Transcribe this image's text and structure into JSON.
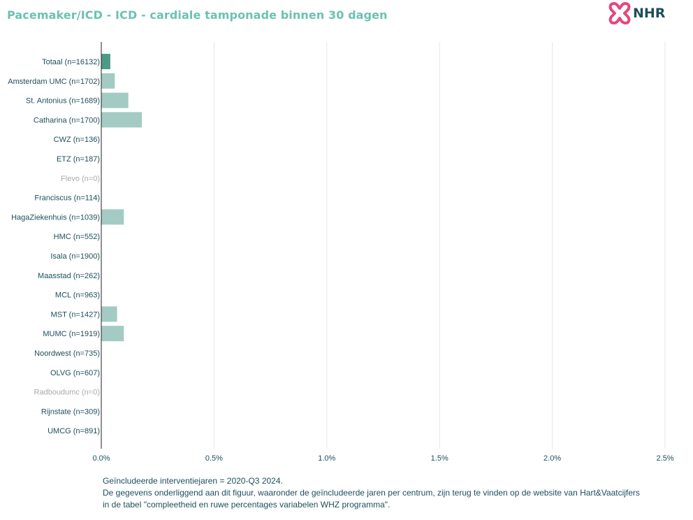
{
  "title": "Pacemaker/ICD - ICD - cardiale tamponade binnen 30 dagen",
  "logo": {
    "text": "NHR",
    "icon": "heart-cross-logo-icon"
  },
  "colors": {
    "title": "#6cc1b3",
    "bar_total": "#4e9a86",
    "bar_center": "#a3cbc4",
    "label": "#1d4f5b",
    "label_muted": "#a9a9a9",
    "grid": "#e6e6e6",
    "logo_pink": "#e8457a"
  },
  "chart_data": {
    "type": "bar",
    "orientation": "horizontal",
    "categories": [
      "Totaal (n=16132)",
      "Amsterdam UMC (n=1702)",
      "St. Antonius (n=1689)",
      "Catharina (n=1700)",
      "CWZ (n=136)",
      "ETZ (n=187)",
      "Flevo (n=0)",
      "Franciscus (n=114)",
      "HagaZiekenhuis (n=1039)",
      "HMC (n=552)",
      "Isala (n=1900)",
      "Maasstad (n=262)",
      "MCL (n=963)",
      "MST (n=1427)",
      "MUMC (n=1919)",
      "Noordwest (n=735)",
      "OLVG (n=607)",
      "Radboudumc (n=0)",
      "Rijnstate (n=309)",
      "UMCG (n=891)"
    ],
    "values": [
      0.04,
      0.06,
      0.12,
      0.18,
      0,
      0,
      0,
      0,
      0.1,
      0,
      0,
      0,
      0,
      0.07,
      0.1,
      0,
      0,
      0,
      0,
      0
    ],
    "muted_categories": [
      "Flevo (n=0)",
      "Radboudumc (n=0)"
    ],
    "highlight_category": "Totaal (n=16132)",
    "xlim": [
      0,
      2.5
    ],
    "xticks": [
      "0.0%",
      "0.5%",
      "1.0%",
      "1.5%",
      "2.0%",
      "2.5%"
    ],
    "xtick_values": [
      0,
      0.5,
      1.0,
      1.5,
      2.0,
      2.5
    ],
    "grid": true,
    "legend": "none"
  },
  "footnote": {
    "line1": "Geïncludeerde interventiejaren = 2020-Q3 2024.",
    "line2": "De gegevens onderliggend aan dit figuur, waaronder de geïncludeerde jaren per centrum, zijn terug te vinden op de website van Hart&Vaatcijfers",
    "line3": "in de tabel \"compleetheid en ruwe percentages variabelen WHZ programma\"."
  }
}
